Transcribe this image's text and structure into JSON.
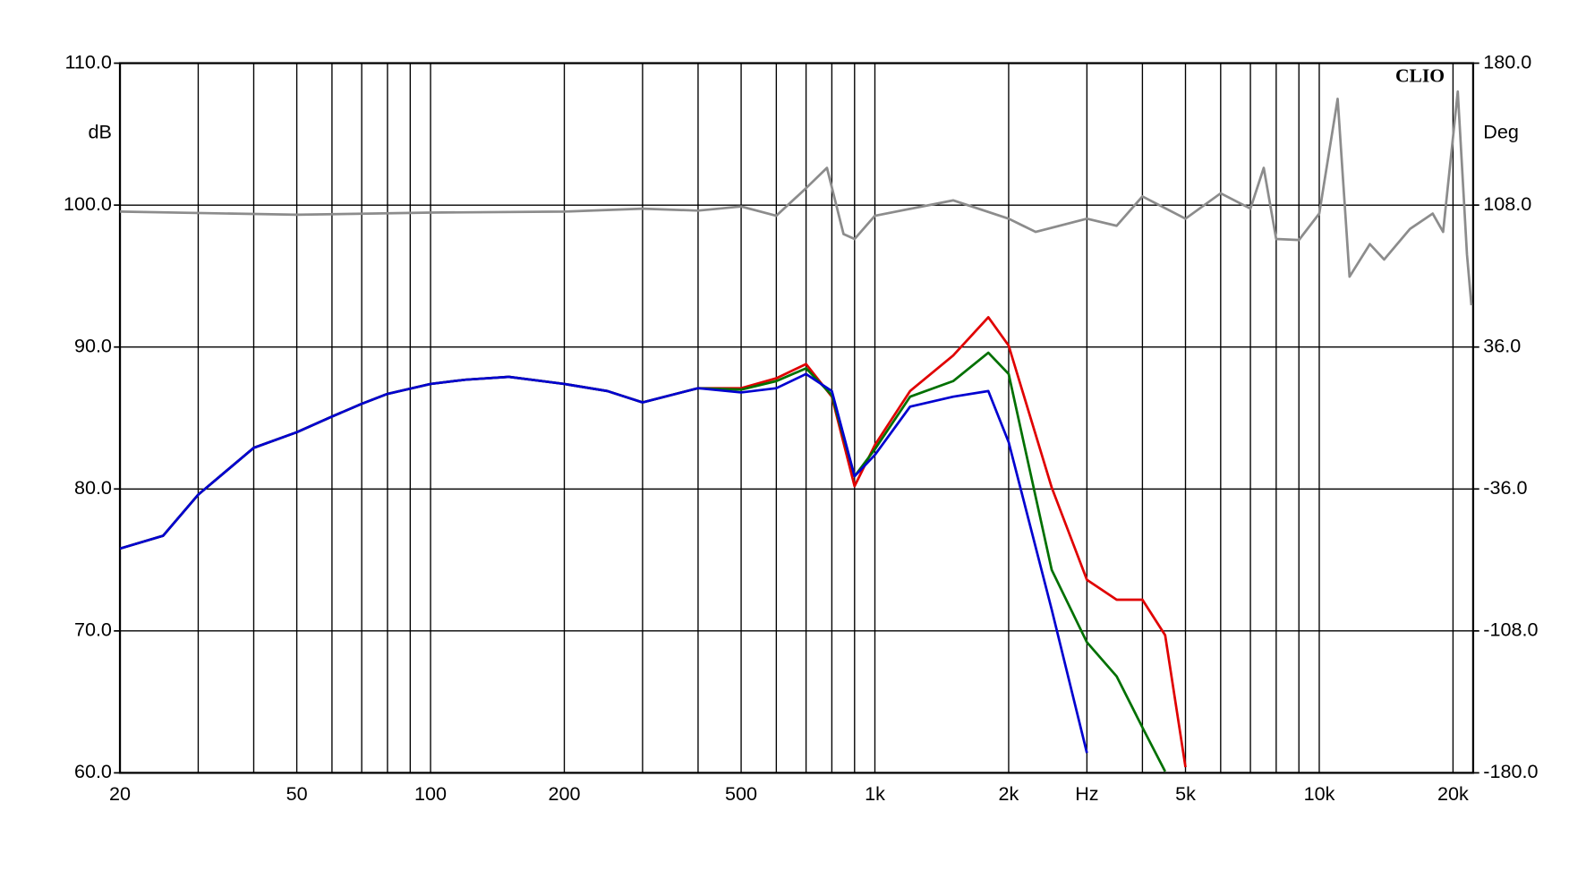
{
  "chart_data": {
    "type": "line",
    "xscale": "log",
    "xlim": [
      20,
      22200
    ],
    "ylim": [
      60,
      110
    ],
    "y2lim": [
      -180,
      180
    ],
    "xticks": [
      20,
      50,
      100,
      200,
      500,
      {
        "value": 1000,
        "label": "1k"
      },
      {
        "value": 2000,
        "label": "2k"
      },
      {
        "value": 3000,
        "label": "Hz"
      },
      {
        "value": 5000,
        "label": "5k"
      },
      {
        "value": 10000,
        "label": "10k"
      },
      {
        "value": 20000,
        "label": "20k"
      }
    ],
    "x_grid": [
      30,
      40,
      60,
      70,
      80,
      90,
      300,
      400,
      600,
      700,
      800,
      900,
      4000,
      6000,
      7000,
      8000,
      9000
    ],
    "yticks": [
      {
        "value": 60,
        "label": "60.0"
      },
      {
        "value": 70,
        "label": "70.0"
      },
      {
        "value": 80,
        "label": "80.0"
      },
      {
        "value": 90,
        "label": "90.0"
      },
      {
        "value": 100,
        "label": "100.0"
      },
      {
        "value": 110,
        "label": "110.0"
      }
    ],
    "y2ticks": [
      {
        "value": -180,
        "label": "-180.0"
      },
      {
        "value": -108,
        "label": "-108.0"
      },
      {
        "value": -36,
        "label": "-36.0"
      },
      {
        "value": 36,
        "label": "36.0"
      },
      {
        "value": 108,
        "label": "108.0"
      },
      {
        "value": 180,
        "label": "180.0"
      }
    ],
    "ylabel": "dB",
    "y2label": "Deg",
    "annotation": "CLIO",
    "grid": true,
    "series": [
      {
        "color": "#e00000",
        "x": [
          20,
          25,
          30,
          40,
          50,
          60,
          70,
          80,
          100,
          120,
          150,
          200,
          250,
          300,
          400,
          500,
          600,
          700,
          800,
          900,
          1000,
          1200,
          1500,
          1800,
          2000,
          2500,
          3000,
          3500,
          4000,
          4500,
          5000
        ],
        "values": [
          75.8,
          76.7,
          79.6,
          82.9,
          84.0,
          85.1,
          86.0,
          86.7,
          87.4,
          87.7,
          87.9,
          87.4,
          86.9,
          86.1,
          87.1,
          87.1,
          87.8,
          88.8,
          86.5,
          80.2,
          83.1,
          86.9,
          89.4,
          92.1,
          90.1,
          80.1,
          73.6,
          72.2,
          72.2,
          69.7,
          60.4
        ]
      },
      {
        "color": "#007000",
        "x": [
          20,
          25,
          30,
          40,
          50,
          60,
          70,
          80,
          100,
          120,
          150,
          200,
          250,
          300,
          400,
          500,
          600,
          700,
          800,
          900,
          1000,
          1200,
          1500,
          1800,
          2000,
          2500,
          3000,
          3500,
          4000,
          4500
        ],
        "values": [
          75.8,
          76.7,
          79.6,
          82.9,
          84.0,
          85.1,
          86.0,
          86.7,
          87.4,
          87.7,
          87.9,
          87.4,
          86.9,
          86.1,
          87.1,
          87.0,
          87.6,
          88.5,
          86.6,
          80.9,
          82.8,
          86.5,
          87.6,
          89.6,
          88.1,
          74.3,
          69.2,
          66.8,
          63.2,
          60.1
        ]
      },
      {
        "color": "#0000d0",
        "x": [
          20,
          25,
          30,
          40,
          50,
          60,
          70,
          80,
          100,
          120,
          150,
          200,
          250,
          300,
          400,
          500,
          600,
          700,
          800,
          900,
          1000,
          1200,
          1500,
          1800,
          2000,
          2500,
          3000
        ],
        "values": [
          75.8,
          76.7,
          79.6,
          82.9,
          84.0,
          85.1,
          86.0,
          86.7,
          87.4,
          87.7,
          87.9,
          87.4,
          86.9,
          86.1,
          87.1,
          86.8,
          87.1,
          88.1,
          86.9,
          80.9,
          82.4,
          85.8,
          86.5,
          86.9,
          83.3,
          71.5,
          61.4
        ]
      },
      {
        "color": "#8c8c8c",
        "axis": "y2",
        "x": [
          20,
          50,
          100,
          200,
          300,
          400,
          500,
          600,
          700,
          780,
          850,
          900,
          1000,
          1500,
          2000,
          2300,
          3000,
          3500,
          4000,
          5000,
          6000,
          7000,
          7500,
          8000,
          9000,
          10000,
          11000,
          11700,
          13000,
          14000,
          16000,
          18000,
          19000,
          20500,
          21500,
          22000
        ],
        "values": [
          104.7,
          103.1,
          104.2,
          104.7,
          106.2,
          105.2,
          107.3,
          102.6,
          116.6,
          126.9,
          93.3,
          90.8,
          102.6,
          110.4,
          101.1,
          94.4,
          101.1,
          97.5,
          112.4,
          101.1,
          114.0,
          106.2,
          126.9,
          90.8,
          90.3,
          103.7,
          161.9,
          71.7,
          88.2,
          80.4,
          95.9,
          103.7,
          94.4,
          165.6,
          83.0,
          57.2
        ]
      }
    ]
  }
}
